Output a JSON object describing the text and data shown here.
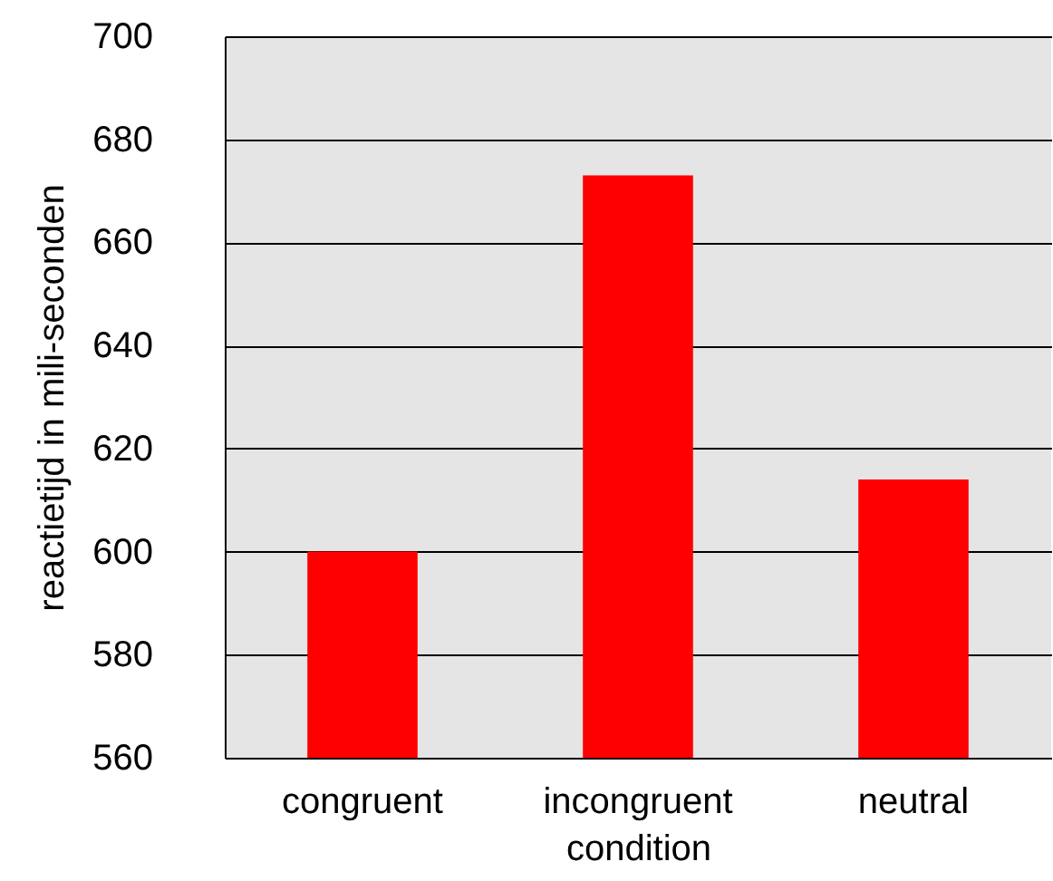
{
  "chart_data": {
    "type": "bar",
    "xlabel": "condition",
    "ylabel": "reactietijd in mili-seconden",
    "categories": [
      "congruent",
      "incongruent",
      "neutral"
    ],
    "values": [
      600,
      673,
      614
    ],
    "color": "#ff0000",
    "ylim": [
      560,
      700
    ],
    "yticks": [
      560,
      580,
      600,
      620,
      640,
      660,
      680,
      700
    ],
    "grid": "y"
  }
}
